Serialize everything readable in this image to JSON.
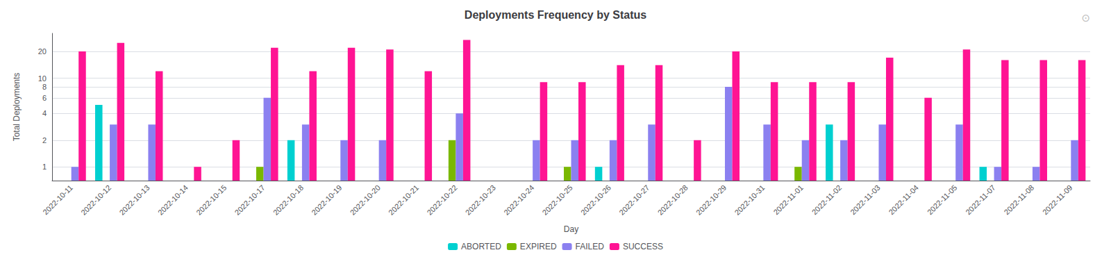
{
  "chart_data": {
    "type": "bar",
    "title": "Deployments Frequency by Status",
    "xlabel": "Day",
    "ylabel": "Total Deployments",
    "categories": [
      "2022-10-11",
      "2022-10-12",
      "2022-10-13",
      "2022-10-14",
      "2022-10-15",
      "2022-10-17",
      "2022-10-18",
      "2022-10-19",
      "2022-10-20",
      "2022-10-21",
      "2022-10-22",
      "2022-10-23",
      "2022-10-24",
      "2022-10-25",
      "2022-10-26",
      "2022-10-27",
      "2022-10-28",
      "2022-10-29",
      "2022-10-31",
      "2022-11-01",
      "2022-11-02",
      "2022-11-03",
      "2022-11-04",
      "2022-11-05",
      "2022-11-07",
      "2022-11-08",
      "2022-11-09"
    ],
    "series": [
      {
        "name": "ABORTED",
        "color": "#00D0D0",
        "values": [
          null,
          5,
          null,
          null,
          null,
          null,
          2,
          null,
          null,
          null,
          null,
          null,
          null,
          null,
          1,
          null,
          null,
          null,
          null,
          null,
          3,
          null,
          null,
          null,
          1,
          null,
          null
        ]
      },
      {
        "name": "EXPIRED",
        "color": "#7AB800",
        "values": [
          null,
          null,
          null,
          null,
          null,
          1,
          null,
          null,
          null,
          null,
          2,
          null,
          null,
          1,
          null,
          null,
          null,
          null,
          null,
          1,
          null,
          null,
          null,
          null,
          null,
          null,
          null
        ]
      },
      {
        "name": "FAILED",
        "color": "#8B80F0",
        "values": [
          1,
          3,
          3,
          null,
          null,
          6,
          3,
          2,
          2,
          null,
          4,
          null,
          2,
          2,
          2,
          3,
          null,
          8,
          3,
          2,
          2,
          3,
          null,
          3,
          1,
          1,
          2
        ]
      },
      {
        "name": "SUCCESS",
        "color": "#FF1493",
        "values": [
          20,
          25,
          12,
          1,
          2,
          22,
          12,
          22,
          21,
          12,
          27,
          null,
          9,
          9,
          14,
          14,
          2,
          20,
          9,
          9,
          9,
          17,
          6,
          21,
          16,
          16,
          16
        ]
      }
    ],
    "log": "y",
    "ylim": [
      0.7,
      32
    ],
    "yticks": [
      1,
      2,
      4,
      6,
      8,
      10,
      20
    ],
    "grid": true,
    "legend": "bottom",
    "annotations": [
      "⊙"
    ]
  }
}
